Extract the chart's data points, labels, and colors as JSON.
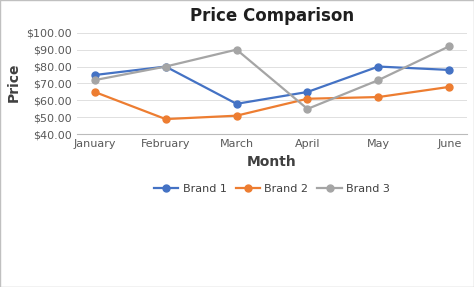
{
  "title": "Price Comparison",
  "xlabel": "Month",
  "ylabel": "Price",
  "months": [
    "January",
    "February",
    "March",
    "April",
    "May",
    "June"
  ],
  "brand1": [
    75,
    80,
    58,
    65,
    80,
    78
  ],
  "brand2": [
    65,
    49,
    51,
    61,
    62,
    68
  ],
  "brand3": [
    72,
    80,
    90,
    55,
    72,
    92
  ],
  "color_brand1": "#4472C4",
  "color_brand2": "#ED7D31",
  "color_brand3": "#A5A5A5",
  "ylim_min": 40,
  "ylim_max": 102,
  "yticks": [
    40,
    50,
    60,
    70,
    80,
    90,
    100
  ],
  "background_color": "#FFFFFF",
  "border_color": "#D0D0D0",
  "title_fontsize": 12,
  "axis_label_fontsize": 10,
  "tick_fontsize": 8,
  "legend_labels": [
    "Brand 1",
    "Brand 2",
    "Brand 3"
  ],
  "line_width": 1.6,
  "marker": "o",
  "marker_size": 5
}
